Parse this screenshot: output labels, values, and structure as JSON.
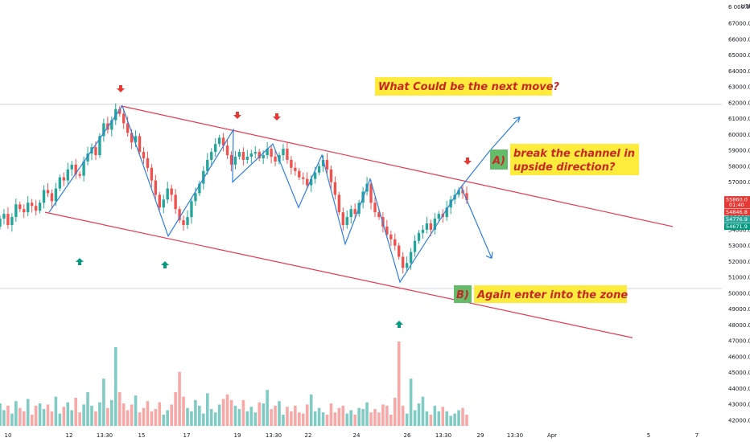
{
  "chart_data": {
    "type": "candlestick",
    "title": "",
    "currency": "USD",
    "ylim": [
      41500,
      68400
    ],
    "y_ticks": [
      42000,
      43000,
      44000,
      45000,
      46000,
      47000,
      48000,
      49000,
      50000,
      51000,
      52000,
      53000,
      54000,
      55000,
      56000,
      57000,
      58000,
      59000,
      60000,
      61000,
      62000,
      63000,
      64000,
      65000,
      66000,
      67000
    ],
    "top_partial_tick": "6 000.0",
    "x_ticks": [
      "10",
      "12",
      "13:30",
      "15",
      "17",
      "19",
      "13:30",
      "22",
      "24",
      "26",
      "13:30",
      "29",
      "13:30",
      "Apr",
      "5",
      "7"
    ],
    "horizontal_levels": [
      61900,
      50300
    ],
    "price_labels": [
      {
        "value": 55860.0,
        "text": "55860.0",
        "sub": "01:40",
        "color": "#e53935"
      },
      {
        "value": 54846.8,
        "text": "54846.8",
        "color": "#e53935"
      },
      {
        "value": 54776.9,
        "text": "54776.9",
        "color": "#26a69a"
      },
      {
        "value": 54671.9,
        "text": "54671.9",
        "color": "#089981"
      }
    ],
    "candles_ohlc_start": 54200,
    "candle_closes": [
      54700,
      55000,
      54300,
      54800,
      55600,
      55300,
      55100,
      55700,
      55500,
      55200,
      55700,
      56500,
      56300,
      55800,
      56600,
      57300,
      57100,
      57800,
      58100,
      57500,
      57400,
      58300,
      58800,
      59200,
      58700,
      59900,
      60700,
      60300,
      60900,
      61600,
      61300,
      60700,
      60100,
      59500,
      59900,
      58900,
      58500,
      57900,
      57100,
      56200,
      55400,
      55900,
      56600,
      56200,
      55300,
      54600,
      54300,
      54800,
      55800,
      56300,
      56900,
      57700,
      58400,
      58900,
      59400,
      59800,
      59300,
      58700,
      58100,
      58600,
      58900,
      58400,
      58600,
      58800,
      58900,
      58500,
      58700,
      59100,
      58600,
      58300,
      58700,
      59100,
      58400,
      57900,
      57700,
      57300,
      57200,
      56800,
      57200,
      57600,
      58000,
      58400,
      57800,
      57000,
      56200,
      55100,
      54300,
      54800,
      55300,
      55000,
      55700,
      56400,
      56900,
      55700,
      55100,
      54800,
      54200,
      53700,
      53400,
      53000,
      52300,
      51600,
      51900,
      52600,
      53300,
      53800,
      54000,
      54400,
      54000,
      54700,
      55000,
      54800,
      55400,
      55900,
      56200,
      56500,
      56300,
      55860
    ],
    "volumes": [
      2.0,
      1.4,
      1.8,
      1.1,
      2.2,
      1.6,
      1.3,
      2.4,
      1.0,
      1.8,
      2.0,
      1.5,
      1.9,
      1.3,
      2.6,
      1.1,
      1.7,
      2.1,
      1.4,
      2.5,
      1.2,
      1.9,
      3.0,
      1.8,
      1.3,
      2.1,
      4.2,
      1.6,
      2.3,
      7.0,
      3.0,
      2.0,
      1.4,
      1.9,
      2.7,
      1.2,
      1.6,
      2.2,
      1.3,
      1.5,
      2.1,
      1.0,
      1.4,
      1.9,
      3.0,
      4.8,
      2.6,
      1.6,
      1.3,
      2.3,
      1.8,
      1.1,
      2.9,
      1.5,
      1.2,
      1.9,
      2.4,
      2.8,
      2.3,
      1.8,
      1.5,
      2.3,
      1.3,
      1.7,
      1.2,
      2.1,
      2.0,
      3.2,
      1.5,
      1.8,
      2.2,
      1.0,
      1.7,
      1.3,
      1.8,
      1.2,
      1.1,
      1.9,
      2.8,
      1.3,
      1.6,
      1.2,
      1.0,
      2.0,
      1.2,
      1.6,
      1.8,
      1.1,
      1.4,
      1.0,
      1.6,
      1.5,
      2.1,
      1.2,
      1.5,
      1.2,
      1.9,
      1.8,
      1.0,
      2.5,
      7.5,
      1.8,
      1.1,
      4.2,
      1.4,
      2.0,
      2.6,
      1.3,
      1.0,
      1.8,
      1.3,
      1.7,
      1.3,
      0.9,
      1.1,
      1.4,
      1.6,
      1.0
    ],
    "annotations": {
      "question": "What Could be the next move?",
      "option_a_letter": "A)",
      "option_a_line1": "break the channel in",
      "option_a_line2": "upside direction?",
      "option_b_letter": "B)",
      "option_b_text": "Again enter into the zone"
    },
    "colors": {
      "up": "#26a69a",
      "down": "#ef5350",
      "volume_up": "#80cbc4",
      "volume_down": "#f7a9a7",
      "channel": "#e53950",
      "zigzag": "#2f7fdc",
      "label_bg": "#ffeb3b",
      "letter_bg": "#66bb6a",
      "signal_down": "#e53935",
      "signal_up": "#089981"
    }
  }
}
